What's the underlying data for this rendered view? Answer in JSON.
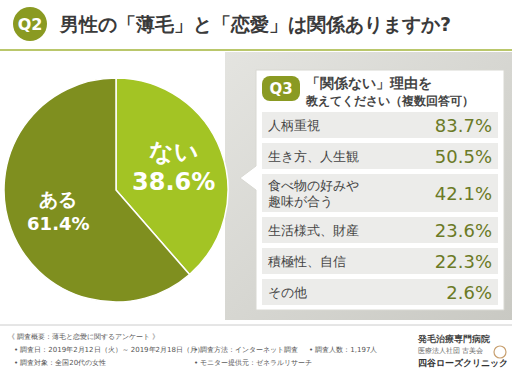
{
  "header": {
    "badge": "Q2",
    "title": "男性の「薄毛」と「恋愛」は関係ありますか?"
  },
  "chart_data": [
    {
      "type": "pie",
      "categories": [
        "ない",
        "ある"
      ],
      "values": [
        38.6,
        61.4
      ],
      "value_labels": [
        "38.6%",
        "61.4%"
      ],
      "colors": [
        "#a3c424",
        "#7f8f1f"
      ],
      "data_labels": true
    },
    {
      "type": "table",
      "annotations": [
        "Q3"
      ],
      "title": "「関係ない」理由を",
      "subtitle": "教えてください（複数回答可）",
      "categories": [
        "人柄重視",
        "生き方、人生観",
        "食べ物の好みや\n趣味が合う",
        "生活様式、財産",
        "積極性、自信",
        "その他"
      ],
      "values": [
        83.7,
        50.5,
        42.1,
        23.6,
        22.3,
        2.6
      ],
      "value_labels": [
        "83.7%",
        "50.5%",
        "42.1%",
        "23.6%",
        "22.3%",
        "2.6%"
      ],
      "data_labels": true
    }
  ],
  "footer": {
    "lines": [
      [
        "《 調査概要：薄毛と恋愛に関するアンケート 》"
      ],
      [
        "• 調査日：2019年2月12日（火）～ 2019年2月18日（月）",
        "• 調査方法：インターネット調査",
        "• 調査人数：1,197人"
      ],
      [
        "• 調査対象：全国20代の女性",
        "• モニター提供元：ゼネラルリサーチ"
      ]
    ],
    "clinic": [
      "発毛治療専門病院",
      "医療法人社団 古美会",
      "四谷ローズクリニック"
    ]
  }
}
